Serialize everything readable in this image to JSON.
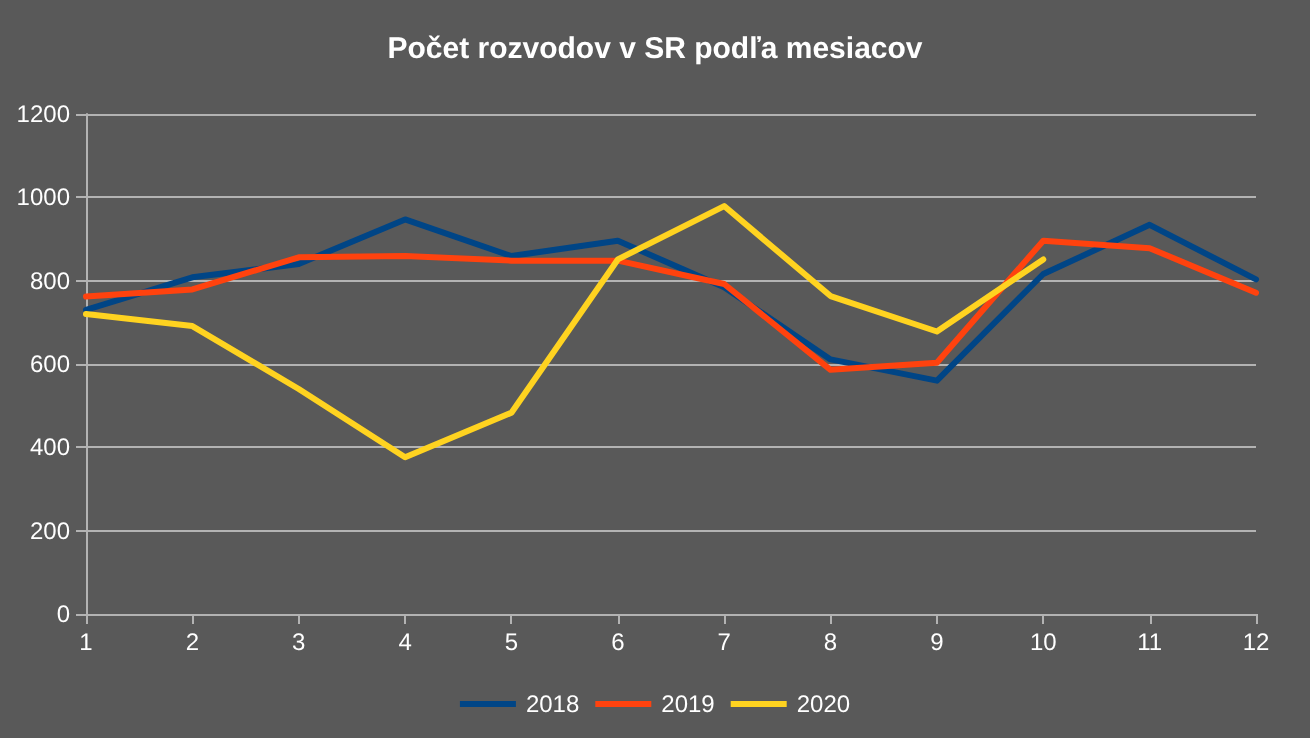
{
  "chart_data": {
    "type": "line",
    "title": "Počet rozvodov v SR podľa mesiacov",
    "x": [
      1,
      2,
      3,
      4,
      5,
      6,
      7,
      8,
      9,
      10,
      11,
      12
    ],
    "xlim": [
      1,
      12
    ],
    "xticks": [
      1,
      2,
      3,
      4,
      5,
      6,
      7,
      8,
      9,
      10,
      11,
      12
    ],
    "series": [
      {
        "name": "2018",
        "color": "#004586",
        "values": [
          730,
          808,
          840,
          947,
          859,
          896,
          784,
          611,
          560,
          816,
          934,
          803
        ]
      },
      {
        "name": "2019",
        "color": "#ff420e",
        "values": [
          762,
          779,
          856,
          859,
          848,
          848,
          792,
          586,
          603,
          896,
          878,
          771
        ]
      },
      {
        "name": "2020",
        "color": "#ffd320",
        "values": [
          720,
          691,
          540,
          376,
          483,
          851,
          979,
          763,
          678,
          851,
          null,
          null
        ]
      }
    ],
    "ylim": [
      0,
      1200
    ],
    "yticks": [
      0,
      200,
      400,
      600,
      800,
      1000,
      1200
    ],
    "grid": "y",
    "legend": "bottom",
    "marker": "none",
    "line_style": "solid"
  }
}
